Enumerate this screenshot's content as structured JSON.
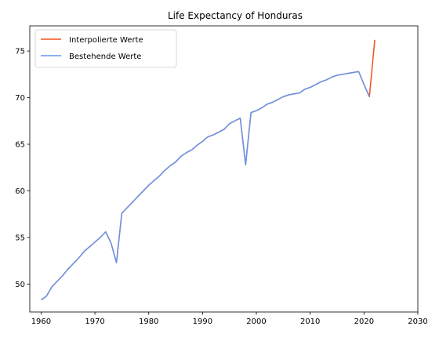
{
  "chart_data": {
    "type": "line",
    "title": "Life Expectancy of Honduras",
    "xlabel": "",
    "ylabel": "",
    "xlim": [
      1957.9,
      2030
    ],
    "ylim": [
      47.0,
      77.7
    ],
    "x_ticks": [
      1960,
      1970,
      1980,
      1990,
      2000,
      2010,
      2020,
      2030
    ],
    "y_ticks": [
      50,
      55,
      60,
      65,
      70,
      75
    ],
    "grid": false,
    "legend_position": "top-left",
    "series": [
      {
        "name": "Interpolierte Werte",
        "color": "#f0511b",
        "x": [
          1960,
          1961,
          1962,
          1963,
          1964,
          1965,
          1966,
          1967,
          1968,
          1969,
          1970,
          1971,
          1972,
          1973,
          1974,
          1975,
          1976,
          1977,
          1978,
          1979,
          1980,
          1981,
          1982,
          1983,
          1984,
          1985,
          1986,
          1987,
          1988,
          1989,
          1990,
          1991,
          1992,
          1993,
          1994,
          1995,
          1996,
          1997,
          1998,
          1999,
          2000,
          2001,
          2002,
          2003,
          2004,
          2005,
          2006,
          2007,
          2008,
          2009,
          2010,
          2011,
          2012,
          2013,
          2014,
          2015,
          2016,
          2017,
          2018,
          2019,
          2020,
          2021,
          2022
        ],
        "y": [
          48.3,
          48.7,
          49.7,
          50.3,
          50.9,
          51.6,
          52.2,
          52.8,
          53.5,
          54.0,
          54.5,
          55.0,
          55.6,
          54.4,
          52.3,
          57.6,
          58.2,
          58.8,
          59.4,
          60.0,
          60.6,
          61.1,
          61.6,
          62.2,
          62.7,
          63.1,
          63.7,
          64.1,
          64.4,
          64.9,
          65.3,
          65.8,
          66.0,
          66.3,
          66.6,
          67.2,
          67.5,
          67.8,
          62.8,
          68.4,
          68.6,
          68.9,
          69.3,
          69.5,
          69.8,
          70.1,
          70.3,
          70.4,
          70.5,
          70.9,
          71.1,
          71.4,
          71.7,
          71.9,
          72.2,
          72.4,
          72.5,
          72.6,
          72.7,
          72.8,
          71.4,
          70.1,
          76.2
        ]
      },
      {
        "name": "Bestehende Werte",
        "color": "#6495ed",
        "x": [
          1960,
          1961,
          1962,
          1963,
          1964,
          1965,
          1966,
          1967,
          1968,
          1969,
          1970,
          1971,
          1972,
          1973,
          1974,
          1975,
          1976,
          1977,
          1978,
          1979,
          1980,
          1981,
          1982,
          1983,
          1984,
          1985,
          1986,
          1987,
          1988,
          1989,
          1990,
          1991,
          1992,
          1993,
          1994,
          1995,
          1996,
          1997,
          1998,
          1999,
          2000,
          2001,
          2002,
          2003,
          2004,
          2005,
          2006,
          2007,
          2008,
          2009,
          2010,
          2011,
          2012,
          2013,
          2014,
          2015,
          2016,
          2017,
          2018,
          2019,
          2020,
          2021
        ],
        "y": [
          48.3,
          48.7,
          49.7,
          50.3,
          50.9,
          51.6,
          52.2,
          52.8,
          53.5,
          54.0,
          54.5,
          55.0,
          55.6,
          54.4,
          52.3,
          57.6,
          58.2,
          58.8,
          59.4,
          60.0,
          60.6,
          61.1,
          61.6,
          62.2,
          62.7,
          63.1,
          63.7,
          64.1,
          64.4,
          64.9,
          65.3,
          65.8,
          66.0,
          66.3,
          66.6,
          67.2,
          67.5,
          67.8,
          62.8,
          68.4,
          68.6,
          68.9,
          69.3,
          69.5,
          69.8,
          70.1,
          70.3,
          70.4,
          70.5,
          70.9,
          71.1,
          71.4,
          71.7,
          71.9,
          72.2,
          72.4,
          72.5,
          72.6,
          72.7,
          72.8,
          71.4,
          70.1
        ]
      }
    ]
  }
}
